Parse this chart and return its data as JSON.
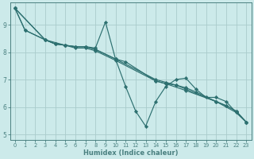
{
  "title": "",
  "xlabel": "Humidex (Indice chaleur)",
  "ylabel": "",
  "bg_color": "#cceaea",
  "line_color": "#2d7070",
  "grid_color": "#aacccc",
  "axis_color": "#4a8080",
  "xlim": [
    -0.5,
    23.5
  ],
  "ylim": [
    4.8,
    9.8
  ],
  "xticks": [
    0,
    1,
    2,
    3,
    4,
    5,
    6,
    7,
    8,
    9,
    10,
    11,
    12,
    13,
    14,
    15,
    16,
    17,
    18,
    19,
    20,
    21,
    22,
    23
  ],
  "yticks": [
    5,
    6,
    7,
    8,
    9
  ],
  "series": [
    {
      "x": [
        0,
        1,
        3,
        4,
        5,
        6,
        7,
        8,
        9,
        10,
        11,
        12,
        13,
        14,
        15,
        16,
        17,
        18,
        19,
        20,
        21,
        22,
        23
      ],
      "y": [
        9.6,
        8.8,
        8.45,
        8.3,
        8.25,
        8.2,
        8.2,
        8.15,
        9.1,
        7.75,
        6.75,
        5.85,
        5.3,
        6.2,
        6.75,
        7.0,
        7.05,
        6.65,
        6.35,
        6.35,
        6.2,
        5.8,
        5.45
      ]
    },
    {
      "x": [
        0,
        1,
        3,
        4,
        5,
        6,
        7,
        8,
        10,
        11,
        14,
        15,
        16,
        17,
        18,
        20,
        21,
        22,
        23
      ],
      "y": [
        9.6,
        8.8,
        8.45,
        8.3,
        8.25,
        8.2,
        8.2,
        8.1,
        7.75,
        7.65,
        6.95,
        6.85,
        6.8,
        6.7,
        6.55,
        6.2,
        6.05,
        5.85,
        5.45
      ]
    },
    {
      "x": [
        0,
        3,
        4,
        5,
        6,
        7,
        8,
        10,
        14,
        15,
        16,
        17,
        20,
        21,
        22,
        23
      ],
      "y": [
        9.6,
        8.45,
        8.3,
        8.25,
        8.2,
        8.2,
        8.1,
        7.75,
        7.0,
        6.9,
        6.8,
        6.65,
        6.2,
        6.05,
        5.85,
        5.45
      ]
    },
    {
      "x": [
        0,
        3,
        5,
        6,
        7,
        8,
        10,
        14,
        15,
        17,
        20,
        22,
        23
      ],
      "y": [
        9.6,
        8.45,
        8.25,
        8.15,
        8.15,
        8.05,
        7.7,
        6.95,
        6.85,
        6.6,
        6.2,
        5.8,
        5.45
      ]
    }
  ]
}
